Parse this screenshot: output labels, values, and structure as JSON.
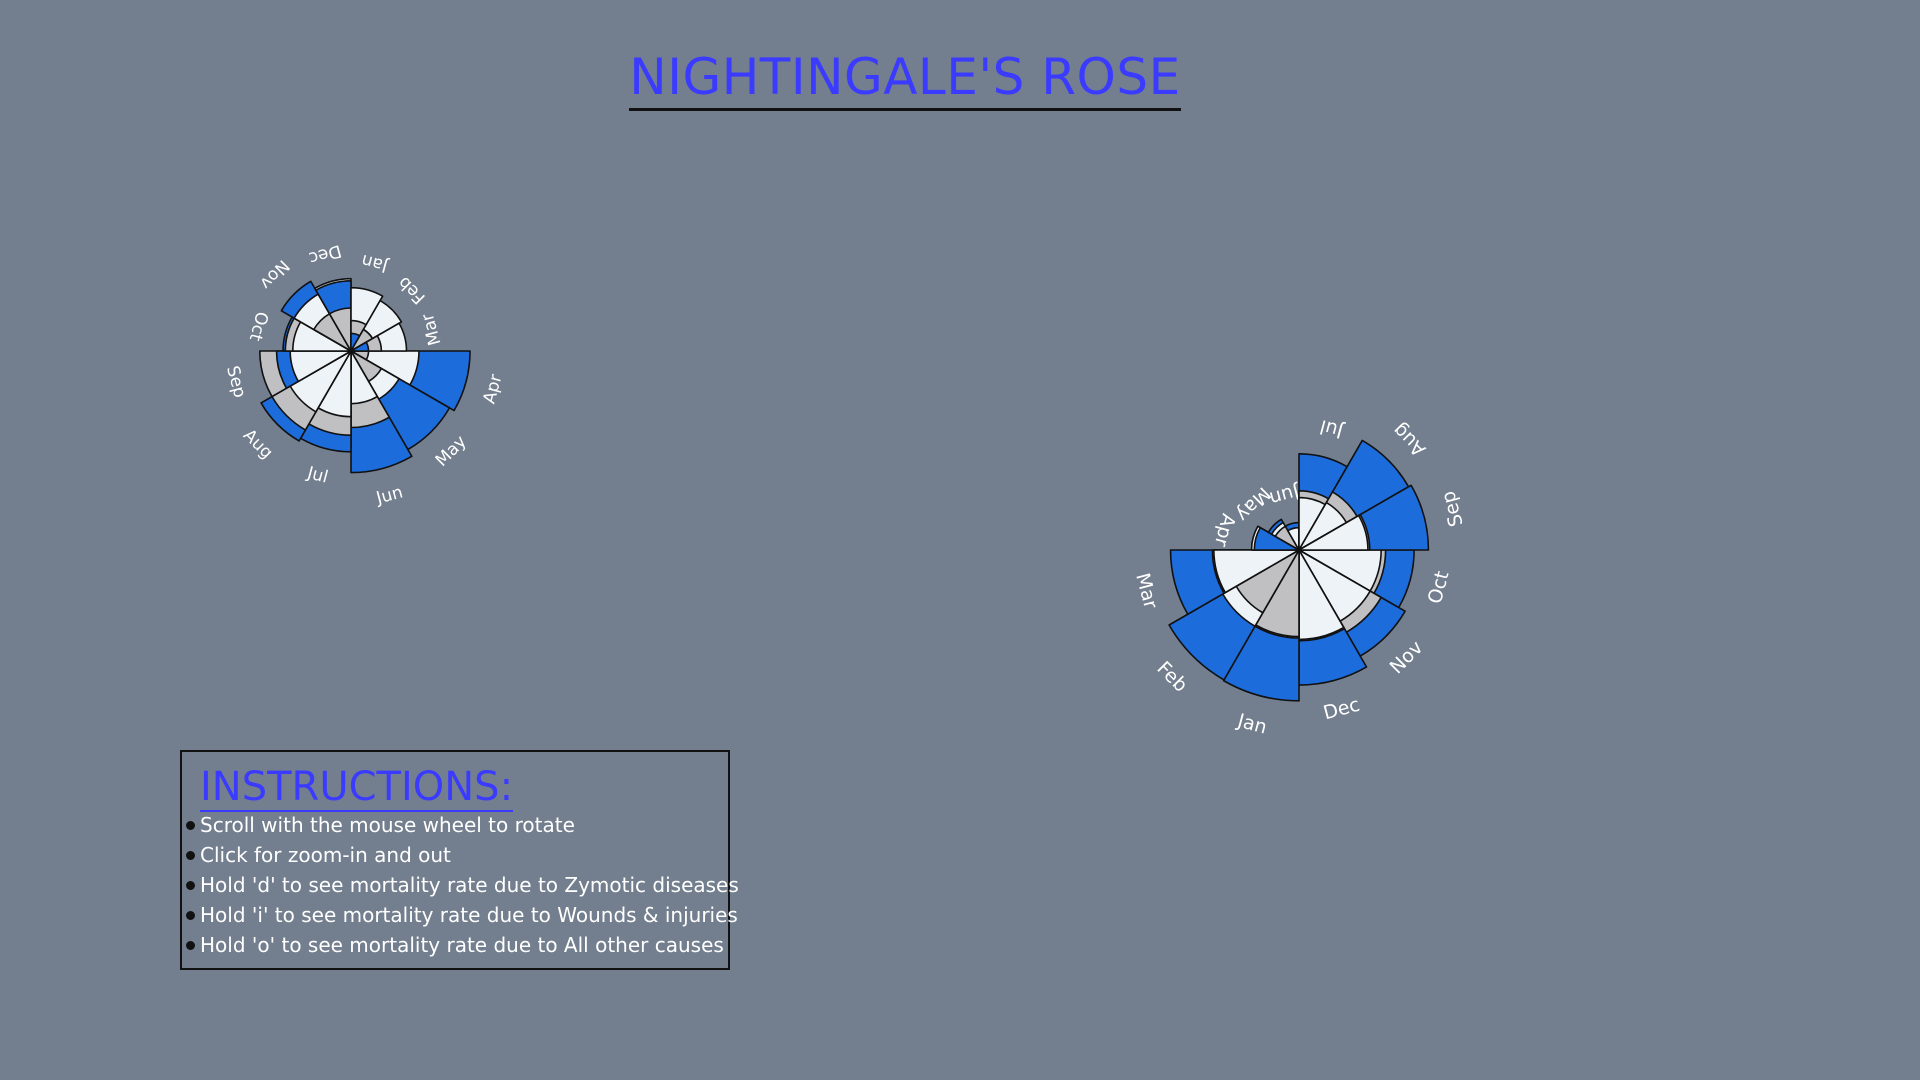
{
  "page": {
    "title": "NIGHTINGALE'S ROSE"
  },
  "instructions": {
    "title": "INSTRUCTIONS:",
    "items": [
      "Scroll with the mouse wheel to rotate",
      "Click for zoom-in and out",
      "Hold 'd' to see mortality rate due to Zymotic diseases",
      "Hold 'i' to see mortality rate due to Wounds & injuries",
      "Hold 'o' to see mortality rate due to All other causes"
    ]
  },
  "colors": {
    "background": "#737f8e",
    "zymotic": "#1c6cdb",
    "wounds": "#c0c0c2",
    "other": "#eef3f7",
    "title": "#3b3bff",
    "outline": "#111111",
    "month_label": "#ffffff"
  },
  "chart_data": [
    {
      "type": "polar-area",
      "stacking": "overlay",
      "rotation_deg": 0,
      "categories": [
        "Apr",
        "May",
        "Jun",
        "Jul",
        "Aug",
        "Sep",
        "Oct",
        "Nov",
        "Dec",
        "Jan",
        "Feb",
        "Mar"
      ],
      "series": [
        {
          "values": [
            46,
            42,
            48,
            33,
            35,
            18,
            15,
            21,
            16,
            1,
            2,
            1
          ]
        },
        {
          "values": [
            1,
            4,
            19,
            23,
            27,
            27,
            14,
            6,
            6,
            3,
            2,
            3
          ]
        },
        {
          "values": [
            15,
            10,
            9,
            14,
            16,
            12,
            11,
            14,
            17,
            13,
            11,
            10
          ]
        }
      ]
    },
    {
      "type": "polar-area",
      "stacking": "overlay",
      "rotation_deg": 0,
      "categories": [
        "Oct",
        "Nov",
        "Dec",
        "Jan",
        "Feb",
        "Mar",
        "Apr",
        "May",
        "Jun",
        "Jul",
        "Aug",
        "Sep"
      ],
      "series": [
        {
          "values": [
            53,
            60,
            73,
            91,
            90,
            66,
            8,
            5,
            3,
            37,
            64,
            67
          ]
        },
        {
          "values": [
            30,
            36,
            33,
            30,
            21,
            30,
            9,
            3,
            2,
            14,
            18,
            20
          ]
        },
        {
          "values": [
            27,
            27,
            32,
            31,
            31,
            29,
            9,
            4,
            2,
            11,
            12,
            19
          ]
        }
      ]
    }
  ]
}
